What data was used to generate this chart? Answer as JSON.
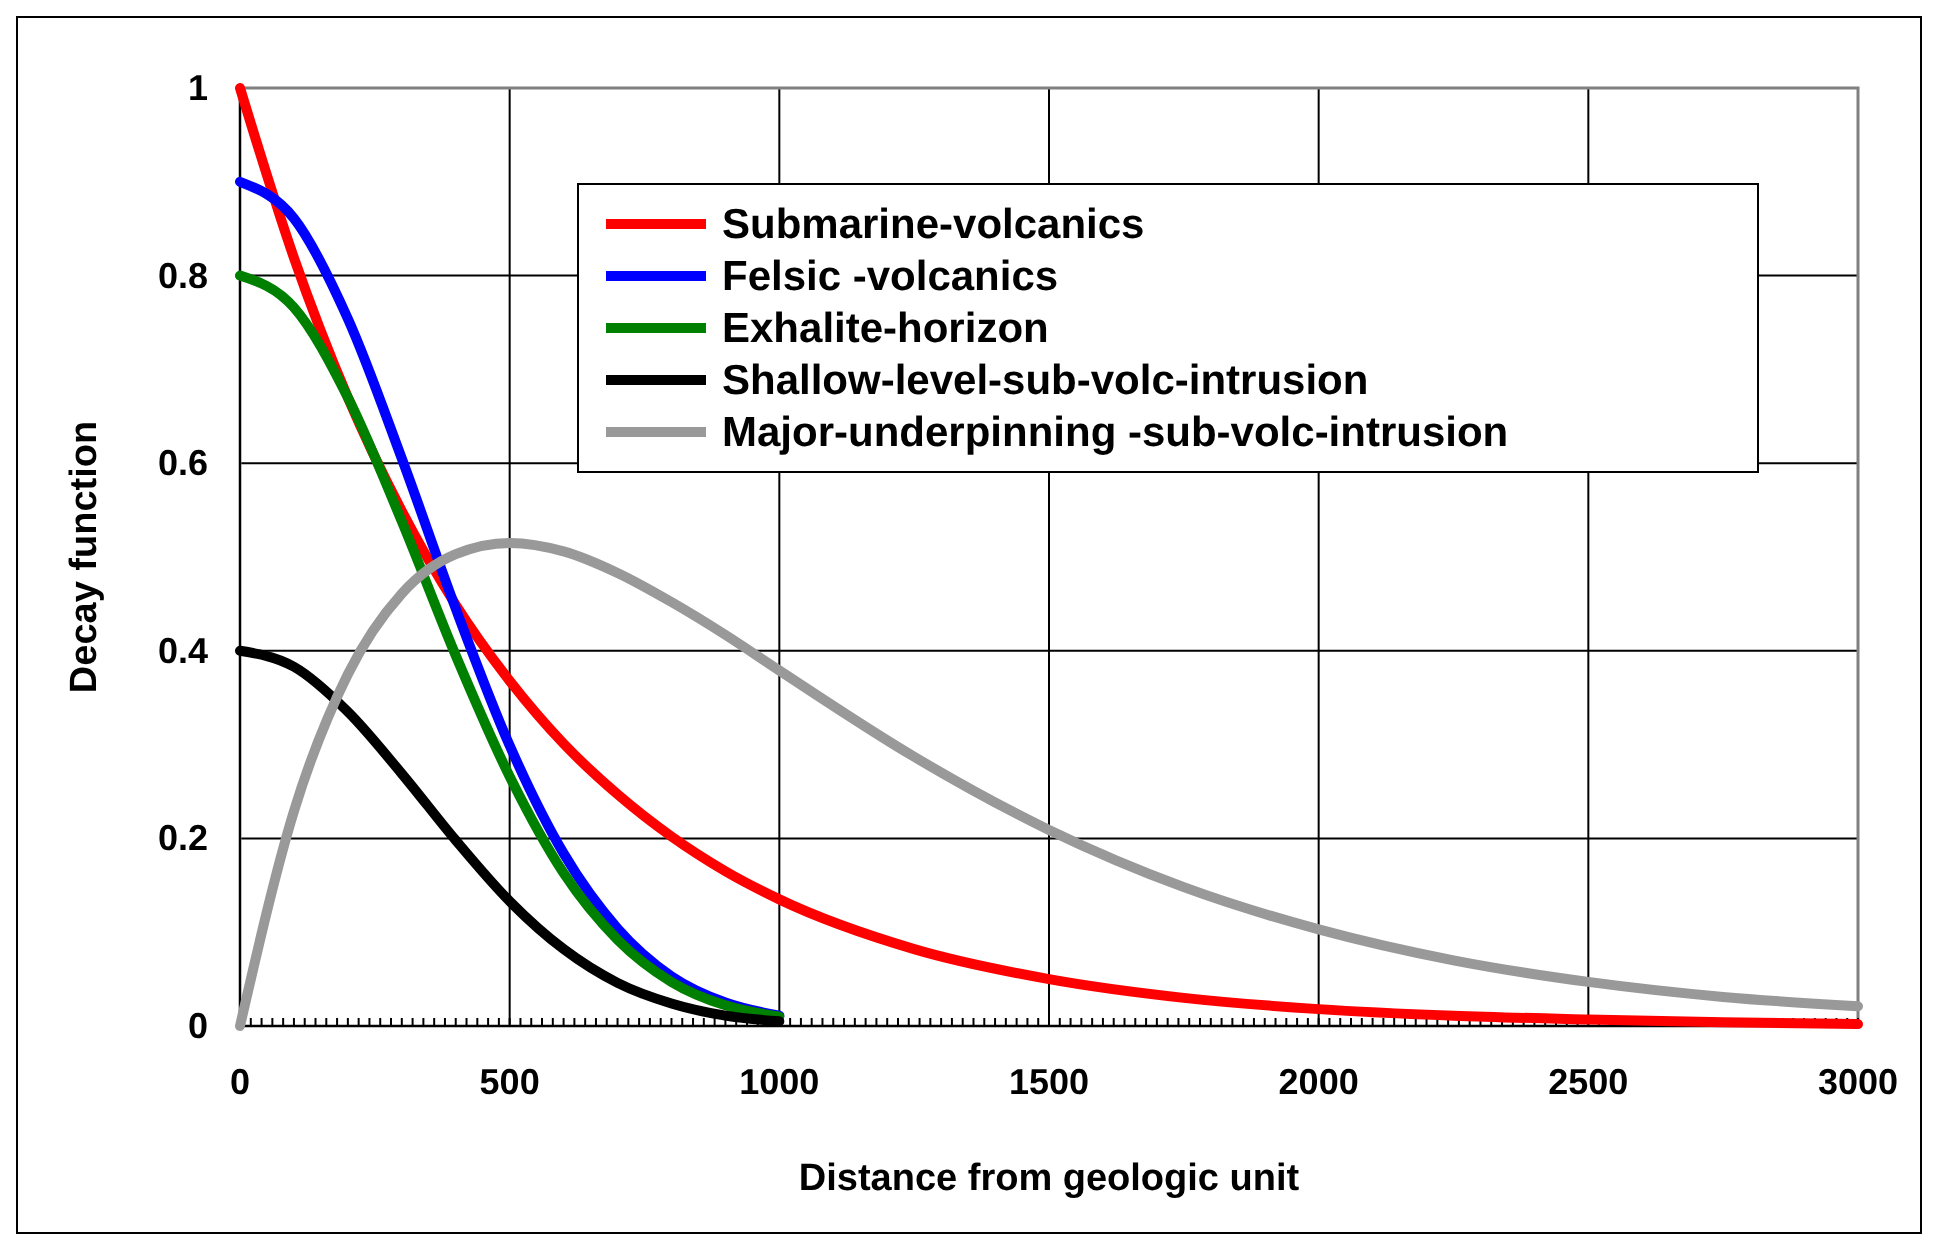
{
  "chart_data": {
    "type": "line",
    "xlabel": "Distance from geologic unit",
    "ylabel": "Decay function",
    "xlim": [
      0,
      3000
    ],
    "xticks": [
      0,
      500,
      1000,
      1500,
      2000,
      2500,
      3000
    ],
    "ylim": [
      0,
      1
    ],
    "yticks": [
      0,
      0.2,
      0.4,
      0.6,
      0.8,
      1
    ],
    "grid": true,
    "legend": "top right",
    "marker": "none",
    "line_style": "solid",
    "series": [
      {
        "name": "Submarine-volcanics",
        "color": "#ff0000",
        "x": [
          0,
          100,
          200,
          300,
          400,
          500,
          600,
          700,
          800,
          900,
          1000,
          1250,
          1500,
          1750,
          2000,
          2250,
          2500,
          2750,
          3000
        ],
        "values": [
          1,
          0.819,
          0.67,
          0.549,
          0.449,
          0.368,
          0.301,
          0.247,
          0.202,
          0.165,
          0.135,
          0.082,
          0.05,
          0.03,
          0.018,
          0.011,
          0.007,
          0.004,
          0.002
        ]
      },
      {
        "name": "Felsic -volcanics",
        "color": "#0000ff",
        "x": [
          0,
          100,
          200,
          300,
          400,
          500,
          600,
          700,
          800,
          900,
          1000
        ],
        "values": [
          0.9,
          0.861,
          0.754,
          0.605,
          0.445,
          0.299,
          0.184,
          0.104,
          0.053,
          0.025,
          0.011
        ]
      },
      {
        "name": "Exhalite-horizon",
        "color": "#008000",
        "x": [
          0,
          100,
          200,
          300,
          400,
          500,
          600,
          700,
          800,
          900,
          1000
        ],
        "values": [
          0.8,
          0.766,
          0.67,
          0.538,
          0.395,
          0.266,
          0.163,
          0.092,
          0.047,
          0.022,
          0.01
        ]
      },
      {
        "name": "Shallow-level-sub-volc-intrusion",
        "color": "#000000",
        "x": [
          0,
          100,
          200,
          300,
          400,
          500,
          600,
          700,
          800,
          900,
          1000
        ],
        "values": [
          0.4,
          0.383,
          0.335,
          0.269,
          0.198,
          0.133,
          0.082,
          0.046,
          0.024,
          0.011,
          0.005
        ]
      },
      {
        "name": "Major-underpinning -sub-volc-intrusion",
        "color": "#999999",
        "x": [
          0,
          100,
          200,
          300,
          400,
          500,
          600,
          700,
          800,
          900,
          1000,
          1250,
          1500,
          1750,
          2000,
          2250,
          2500,
          2750,
          3000
        ],
        "values": [
          0,
          0.229,
          0.375,
          0.461,
          0.503,
          0.515,
          0.506,
          0.483,
          0.452,
          0.417,
          0.379,
          0.287,
          0.209,
          0.148,
          0.103,
          0.07,
          0.047,
          0.031,
          0.021
        ]
      }
    ]
  }
}
